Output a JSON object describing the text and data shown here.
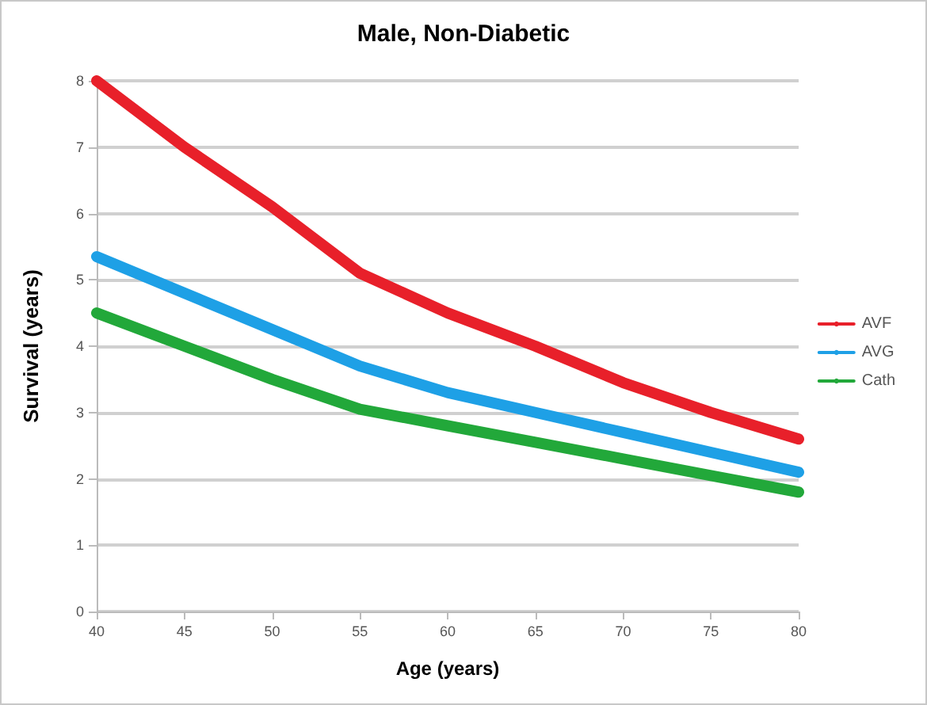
{
  "chart_data": {
    "type": "line",
    "title": "Male, Non-Diabetic",
    "xlabel": "Age (years)",
    "ylabel": "Survival (years)",
    "x": [
      40,
      45,
      50,
      55,
      60,
      65,
      70,
      75,
      80
    ],
    "series": [
      {
        "name": "AVF",
        "color": "#e8202a",
        "values": [
          8,
          7,
          6.1,
          5.1,
          4.5,
          4.0,
          3.45,
          3.0,
          2.6
        ]
      },
      {
        "name": "AVG",
        "color": "#1ea0e6",
        "values": [
          5.35,
          4.8,
          4.25,
          3.7,
          3.3,
          3.0,
          2.7,
          2.4,
          2.1
        ]
      },
      {
        "name": "Cath",
        "color": "#22a83a",
        "values": [
          4.5,
          4.0,
          3.5,
          3.05,
          2.8,
          2.55,
          2.3,
          2.05,
          1.8
        ]
      }
    ],
    "xlim": [
      40,
      80
    ],
    "xticks": [
      40,
      45,
      50,
      55,
      60,
      65,
      70,
      75,
      80
    ],
    "ylim": [
      0,
      8
    ],
    "yticks": [
      0,
      1,
      2,
      3,
      4,
      5,
      6,
      7,
      8
    ],
    "grid": "y",
    "legend": "right",
    "line_style": "solid"
  }
}
